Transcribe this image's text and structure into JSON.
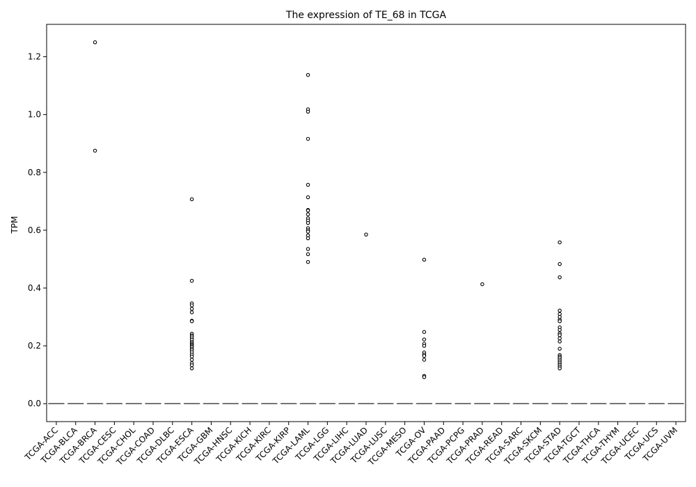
{
  "chart_data": {
    "type": "boxplot",
    "title": "The expression of TE_68 in TCGA",
    "xlabel": "",
    "ylabel": "TPM",
    "ylim": [
      -0.062,
      1.312
    ],
    "yticks": [
      0.0,
      0.2,
      0.4,
      0.6,
      0.8,
      1.0,
      1.2
    ],
    "ytick_labels": [
      "0.0",
      "0.2",
      "0.4",
      "0.6",
      "0.8",
      "1.0",
      "1.2"
    ],
    "grid": false,
    "legend": "none",
    "colors": {
      "axis": "#000000",
      "box": "#555555",
      "outlier_edge": "#000000",
      "outlier_fill": "#ffffff"
    },
    "categories": [
      "TCGA-ACC",
      "TCGA-BLCA",
      "TCGA-BRCA",
      "TCGA-CESC",
      "TCGA-CHOL",
      "TCGA-COAD",
      "TCGA-DLBC",
      "TCGA-ESCA",
      "TCGA-GBM",
      "TCGA-HNSC",
      "TCGA-KICH",
      "TCGA-KIRC",
      "TCGA-KIRP",
      "TCGA-LAML",
      "TCGA-LGG",
      "TCGA-LIHC",
      "TCGA-LUAD",
      "TCGA-LUSC",
      "TCGA-MESO",
      "TCGA-OV",
      "TCGA-PAAD",
      "TCGA-PCPG",
      "TCGA-PRAD",
      "TCGA-READ",
      "TCGA-SARC",
      "TCGA-SKCM",
      "TCGA-STAD",
      "TCGA-TGCT",
      "TCGA-THCA",
      "TCGA-THYM",
      "TCGA-UCEC",
      "TCGA-UCS",
      "TCGA-UVM"
    ],
    "boxes": [
      {
        "q1": 0,
        "median": 0,
        "q3": 0,
        "whisker_low": 0,
        "whisker_high": 0,
        "outliers": []
      },
      {
        "q1": 0,
        "median": 0,
        "q3": 0,
        "whisker_low": 0,
        "whisker_high": 0,
        "outliers": []
      },
      {
        "q1": 0,
        "median": 0,
        "q3": 0,
        "whisker_low": 0,
        "whisker_high": 0,
        "outliers": [
          1.25,
          0.875
        ]
      },
      {
        "q1": 0,
        "median": 0,
        "q3": 0,
        "whisker_low": 0,
        "whisker_high": 0,
        "outliers": []
      },
      {
        "q1": 0,
        "median": 0,
        "q3": 0,
        "whisker_low": 0,
        "whisker_high": 0,
        "outliers": []
      },
      {
        "q1": 0,
        "median": 0,
        "q3": 0,
        "whisker_low": 0,
        "whisker_high": 0,
        "outliers": []
      },
      {
        "q1": 0,
        "median": 0,
        "q3": 0,
        "whisker_low": 0,
        "whisker_high": 0,
        "outliers": []
      },
      {
        "q1": 0,
        "median": 0,
        "q3": 0,
        "whisker_low": 0,
        "whisker_high": 0,
        "outliers": [
          0.707,
          0.425,
          0.347,
          0.34,
          0.328,
          0.316,
          0.287,
          0.285,
          0.242,
          0.236,
          0.232,
          0.226,
          0.22,
          0.213,
          0.208,
          0.204,
          0.2,
          0.196,
          0.19,
          0.185,
          0.178,
          0.17,
          0.163,
          0.152,
          0.14,
          0.133,
          0.122
        ]
      },
      {
        "q1": 0,
        "median": 0,
        "q3": 0,
        "whisker_low": 0,
        "whisker_high": 0,
        "outliers": []
      },
      {
        "q1": 0,
        "median": 0,
        "q3": 0,
        "whisker_low": 0,
        "whisker_high": 0,
        "outliers": []
      },
      {
        "q1": 0,
        "median": 0,
        "q3": 0,
        "whisker_low": 0,
        "whisker_high": 0,
        "outliers": []
      },
      {
        "q1": 0,
        "median": 0,
        "q3": 0,
        "whisker_low": 0,
        "whisker_high": 0,
        "outliers": []
      },
      {
        "q1": 0,
        "median": 0,
        "q3": 0,
        "whisker_low": 0,
        "whisker_high": 0,
        "outliers": []
      },
      {
        "q1": 0,
        "median": 0,
        "q3": 0,
        "whisker_low": 0,
        "whisker_high": 0,
        "outliers": [
          1.137,
          1.018,
          1.01,
          0.916,
          0.757,
          0.714,
          0.67,
          0.668,
          0.655,
          0.641,
          0.633,
          0.625,
          0.607,
          0.6,
          0.595,
          0.582,
          0.572,
          0.535,
          0.517,
          0.49
        ]
      },
      {
        "q1": 0,
        "median": 0,
        "q3": 0,
        "whisker_low": 0,
        "whisker_high": 0,
        "outliers": []
      },
      {
        "q1": 0,
        "median": 0,
        "q3": 0,
        "whisker_low": 0,
        "whisker_high": 0,
        "outliers": []
      },
      {
        "q1": 0,
        "median": 0,
        "q3": 0,
        "whisker_low": 0,
        "whisker_high": 0,
        "outliers": [
          0.585
        ]
      },
      {
        "q1": 0,
        "median": 0,
        "q3": 0,
        "whisker_low": 0,
        "whisker_high": 0,
        "outliers": []
      },
      {
        "q1": 0,
        "median": 0,
        "q3": 0,
        "whisker_low": 0,
        "whisker_high": 0,
        "outliers": []
      },
      {
        "q1": 0,
        "median": 0,
        "q3": 0,
        "whisker_low": 0,
        "whisker_high": 0,
        "outliers": [
          0.498,
          0.248,
          0.222,
          0.207,
          0.2,
          0.177,
          0.17,
          0.165,
          0.152,
          0.096,
          0.092
        ]
      },
      {
        "q1": 0,
        "median": 0,
        "q3": 0,
        "whisker_low": 0,
        "whisker_high": 0,
        "outliers": []
      },
      {
        "q1": 0,
        "median": 0,
        "q3": 0,
        "whisker_low": 0,
        "whisker_high": 0,
        "outliers": []
      },
      {
        "q1": 0,
        "median": 0,
        "q3": 0,
        "whisker_low": 0,
        "whisker_high": 0,
        "outliers": [
          0.413
        ]
      },
      {
        "q1": 0,
        "median": 0,
        "q3": 0,
        "whisker_low": 0,
        "whisker_high": 0,
        "outliers": []
      },
      {
        "q1": 0,
        "median": 0,
        "q3": 0,
        "whisker_low": 0,
        "whisker_high": 0,
        "outliers": []
      },
      {
        "q1": 0,
        "median": 0,
        "q3": 0,
        "whisker_low": 0,
        "whisker_high": 0,
        "outliers": []
      },
      {
        "q1": 0,
        "median": 0,
        "q3": 0,
        "whisker_low": 0,
        "whisker_high": 0,
        "outliers": [
          0.558,
          0.483,
          0.437,
          0.322,
          0.31,
          0.3,
          0.29,
          0.285,
          0.264,
          0.255,
          0.243,
          0.237,
          0.226,
          0.215,
          0.19,
          0.168,
          0.163,
          0.158,
          0.152,
          0.146,
          0.14,
          0.134,
          0.128,
          0.122
        ]
      },
      {
        "q1": 0,
        "median": 0,
        "q3": 0,
        "whisker_low": 0,
        "whisker_high": 0,
        "outliers": []
      },
      {
        "q1": 0,
        "median": 0,
        "q3": 0,
        "whisker_low": 0,
        "whisker_high": 0,
        "outliers": []
      },
      {
        "q1": 0,
        "median": 0,
        "q3": 0,
        "whisker_low": 0,
        "whisker_high": 0,
        "outliers": []
      },
      {
        "q1": 0,
        "median": 0,
        "q3": 0,
        "whisker_low": 0,
        "whisker_high": 0,
        "outliers": []
      },
      {
        "q1": 0,
        "median": 0,
        "q3": 0,
        "whisker_low": 0,
        "whisker_high": 0,
        "outliers": []
      },
      {
        "q1": 0,
        "median": 0,
        "q3": 0,
        "whisker_low": 0,
        "whisker_high": 0,
        "outliers": []
      }
    ]
  }
}
